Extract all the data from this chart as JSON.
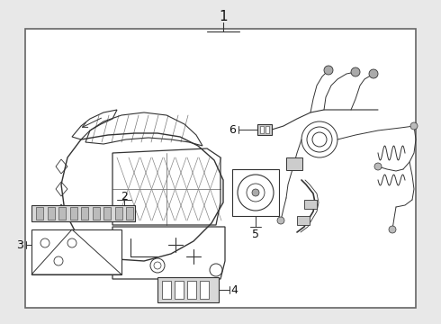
{
  "fig_bg": "#e8e8e8",
  "panel_bg": "#f5f5f5",
  "dot_color": "#cccccc",
  "border_color": "#666666",
  "line_color": "#333333",
  "label_color": "#111111",
  "label_fs": 9,
  "title_fs": 11
}
